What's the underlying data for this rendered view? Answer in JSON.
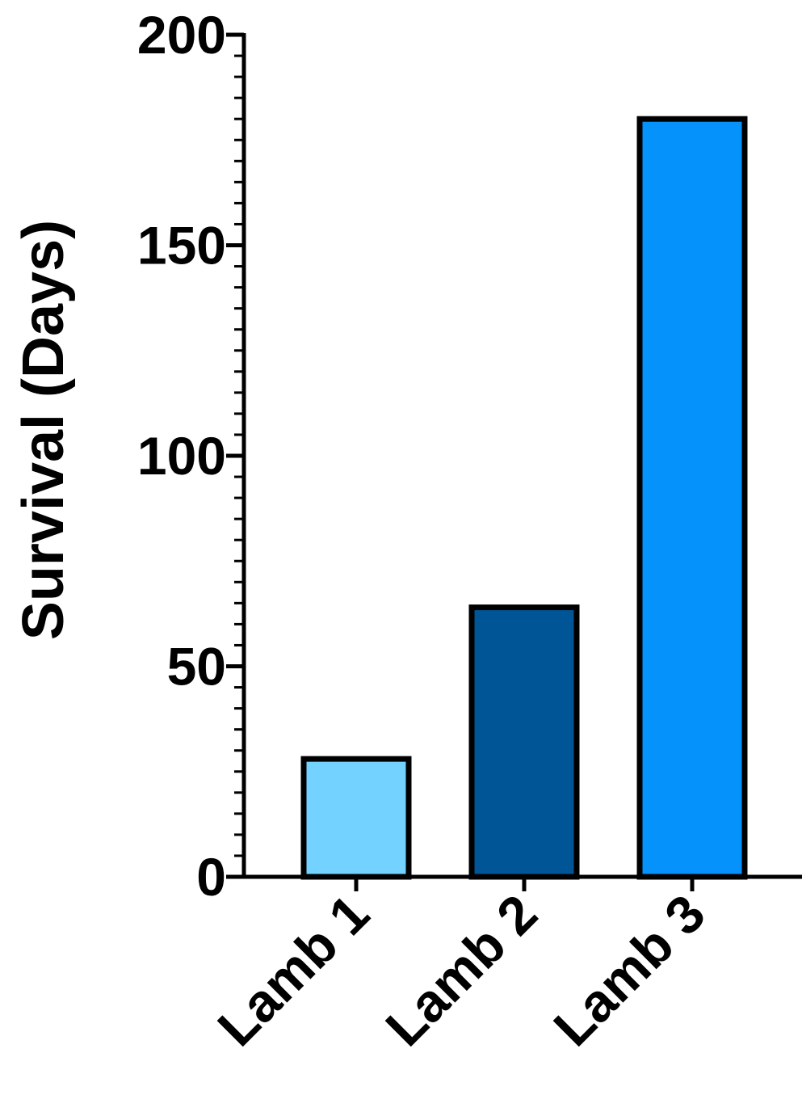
{
  "chart_data": {
    "type": "bar",
    "title": "",
    "xlabel": "",
    "ylabel": "Survival (Days)",
    "categories": [
      "Lamb 1",
      "Lamb 2",
      "Lamb 3"
    ],
    "values": [
      28,
      64,
      180
    ],
    "colors": [
      "#73d2ff",
      "#005596",
      "#0592fa"
    ],
    "ylim": [
      0,
      200
    ],
    "major_ticks": [
      0,
      50,
      100,
      150,
      200
    ],
    "minor_tick_step": 5,
    "grid": false,
    "legend": "none"
  }
}
